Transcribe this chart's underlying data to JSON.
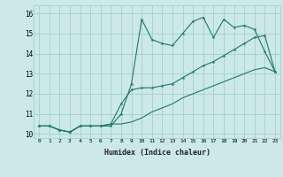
{
  "xlabel": "Humidex (Indice chaleur)",
  "x_values": [
    0,
    1,
    2,
    3,
    4,
    5,
    6,
    7,
    8,
    9,
    10,
    11,
    12,
    13,
    14,
    15,
    16,
    17,
    18,
    19,
    20,
    21,
    22,
    23
  ],
  "line1_y": [
    10.4,
    10.4,
    10.2,
    10.1,
    10.4,
    10.4,
    10.4,
    10.4,
    11.0,
    12.5,
    15.7,
    14.7,
    14.5,
    14.4,
    15.0,
    15.6,
    15.8,
    14.8,
    15.7,
    15.3,
    15.4,
    15.2,
    14.1,
    13.1
  ],
  "line2_y": [
    10.4,
    10.4,
    10.2,
    10.1,
    10.4,
    10.4,
    10.4,
    10.5,
    11.5,
    12.2,
    12.3,
    12.3,
    12.4,
    12.5,
    12.8,
    13.1,
    13.4,
    13.6,
    13.9,
    14.2,
    14.5,
    14.8,
    14.9,
    13.1
  ],
  "line3_y": [
    10.4,
    10.4,
    10.2,
    10.1,
    10.4,
    10.4,
    10.4,
    10.5,
    10.5,
    10.6,
    10.8,
    11.1,
    11.3,
    11.5,
    11.8,
    12.0,
    12.2,
    12.4,
    12.6,
    12.8,
    13.0,
    13.2,
    13.3,
    13.1
  ],
  "line_color": "#1a7a6e",
  "bg_color": "#cce8e8",
  "grid_color": "#99cccc",
  "ylim": [
    9.8,
    16.4
  ],
  "xlim": [
    -0.5,
    23.5
  ],
  "yticks": [
    10,
    11,
    12,
    13,
    14,
    15,
    16
  ],
  "xticks": [
    0,
    1,
    2,
    3,
    4,
    5,
    6,
    7,
    8,
    9,
    10,
    11,
    12,
    13,
    14,
    15,
    16,
    17,
    18,
    19,
    20,
    21,
    22,
    23
  ]
}
